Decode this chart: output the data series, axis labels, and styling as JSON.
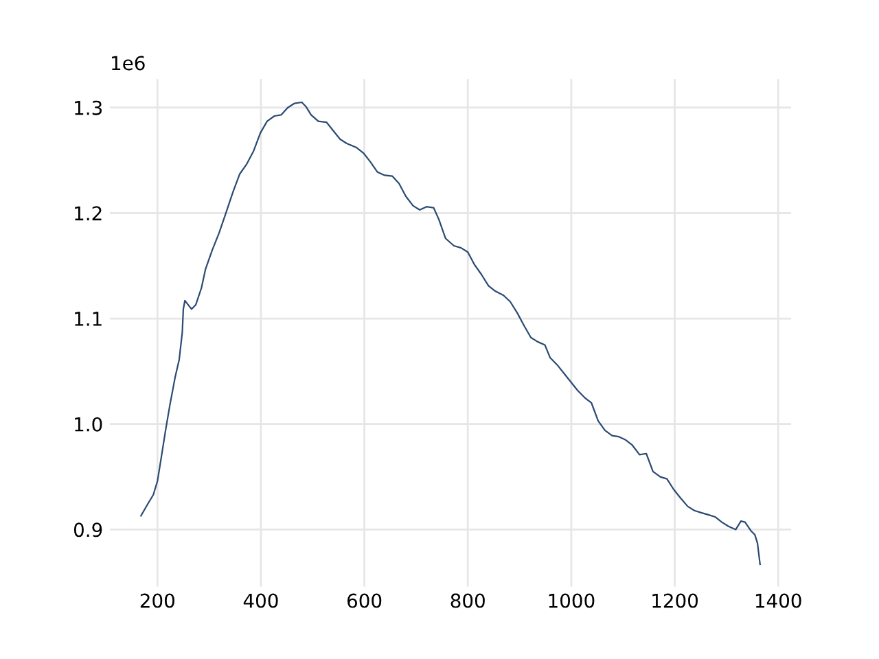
{
  "chart_data": {
    "type": "line",
    "x": [
      168,
      181,
      192,
      200,
      205,
      216,
      224,
      234,
      242,
      248,
      250,
      253,
      261,
      266,
      274,
      285,
      293,
      306,
      319,
      333,
      346,
      359,
      372,
      386,
      399,
      412,
      426,
      439,
      452,
      465,
      479,
      487,
      497,
      511,
      527,
      540,
      553,
      566,
      585,
      598,
      611,
      625,
      638,
      654,
      667,
      680,
      694,
      707,
      720,
      734,
      744,
      757,
      773,
      787,
      800,
      813,
      826,
      840,
      853,
      869,
      882,
      896,
      909,
      922,
      935,
      949,
      959,
      973,
      986,
      999,
      1012,
      1026,
      1039,
      1052,
      1065,
      1079,
      1092,
      1105,
      1118,
      1132,
      1145,
      1158,
      1172,
      1185,
      1198,
      1211,
      1225,
      1238,
      1251,
      1265,
      1278,
      1291,
      1304,
      1318,
      1328,
      1336,
      1347,
      1355,
      1360,
      1365
    ],
    "series": [
      {
        "color": "#2b4b73",
        "values": [
          0.913,
          0.924,
          0.933,
          0.946,
          0.961,
          0.995,
          1.018,
          1.044,
          1.061,
          1.087,
          1.109,
          1.117,
          1.112,
          1.109,
          1.113,
          1.129,
          1.147,
          1.165,
          1.181,
          1.201,
          1.22,
          1.237,
          1.246,
          1.259,
          1.276,
          1.287,
          1.292,
          1.293,
          1.3,
          1.304,
          1.305,
          1.301,
          1.293,
          1.287,
          1.286,
          1.278,
          1.27,
          1.266,
          1.262,
          1.257,
          1.249,
          1.239,
          1.236,
          1.235,
          1.228,
          1.216,
          1.207,
          1.203,
          1.206,
          1.205,
          1.194,
          1.176,
          1.169,
          1.167,
          1.163,
          1.151,
          1.142,
          1.131,
          1.126,
          1.122,
          1.116,
          1.105,
          1.093,
          1.082,
          1.078,
          1.075,
          1.063,
          1.056,
          1.048,
          1.04,
          1.032,
          1.025,
          1.02,
          1.003,
          0.994,
          0.989,
          0.988,
          0.985,
          0.98,
          0.971,
          0.972,
          0.955,
          0.95,
          0.948,
          0.938,
          0.93,
          0.922,
          0.918,
          0.916,
          0.914,
          0.912,
          0.907,
          0.903,
          0.9,
          0.908,
          0.907,
          0.899,
          0.895,
          0.887,
          0.867
        ]
      }
    ],
    "xlim": [
      108,
      1425
    ],
    "ylim": [
      0.846,
      1.327
    ],
    "xticks": [
      200,
      400,
      600,
      800,
      1000,
      1200,
      1400
    ],
    "yticks": [
      0.9,
      {
        "value": 1,
        "label": "1.0"
      },
      1.1,
      1.2,
      1.3
    ],
    "annotations": [
      "1e6"
    ],
    "grid": true,
    "marker": "none",
    "line_style": "solid"
  }
}
